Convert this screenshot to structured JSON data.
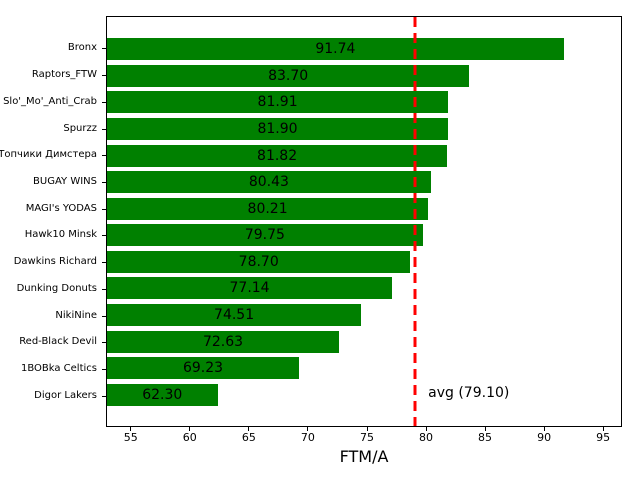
{
  "chart_data": {
    "type": "bar",
    "orientation": "horizontal",
    "title": "",
    "xlabel": "FTM/A",
    "ylabel": "",
    "categories": [
      "Bronx",
      "Raptors_FTW",
      "Slo'_Mo'_Anti_Crab",
      "Spurzz",
      "Топчики Димстера",
      "BUGAY WINS",
      "MAGI's YODAS",
      "Hawk10 Minsk",
      "Dawkins Richard",
      "Dunking Donuts",
      "NikiNine",
      "Red-Black Devil",
      "1BOBka Celtics",
      "Digor Lakers"
    ],
    "values": [
      91.74,
      83.7,
      81.91,
      81.9,
      81.82,
      80.43,
      80.21,
      79.75,
      78.7,
      77.14,
      74.51,
      72.63,
      69.23,
      62.3
    ],
    "value_labels": [
      "91.74",
      "83.70",
      "81.91",
      "81.90",
      "81.82",
      "80.43",
      "80.21",
      "79.75",
      "78.70",
      "77.14",
      "74.51",
      "72.63",
      "69.23",
      "62.30"
    ],
    "x_ticks": [
      55,
      60,
      65,
      70,
      75,
      80,
      85,
      90,
      95
    ],
    "xlim": [
      52.9,
      96.6
    ],
    "grid": false,
    "legend": null,
    "bar_color": "#008000",
    "avg_line": {
      "value": 79.1,
      "label": "avg (79.10)",
      "color": "#ff0000",
      "style": "dashed"
    }
  }
}
